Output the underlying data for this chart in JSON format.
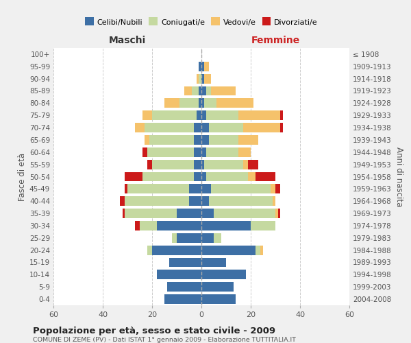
{
  "age_groups": [
    "0-4",
    "5-9",
    "10-14",
    "15-19",
    "20-24",
    "25-29",
    "30-34",
    "35-39",
    "40-44",
    "45-49",
    "50-54",
    "55-59",
    "60-64",
    "65-69",
    "70-74",
    "75-79",
    "80-84",
    "85-89",
    "90-94",
    "95-99",
    "100+"
  ],
  "birth_years": [
    "2004-2008",
    "1999-2003",
    "1994-1998",
    "1989-1993",
    "1984-1988",
    "1979-1983",
    "1974-1978",
    "1969-1973",
    "1964-1968",
    "1959-1963",
    "1954-1958",
    "1949-1953",
    "1944-1948",
    "1939-1943",
    "1934-1938",
    "1929-1933",
    "1924-1928",
    "1919-1923",
    "1914-1918",
    "1909-1913",
    "≤ 1908"
  ],
  "males": {
    "celibi": [
      15,
      14,
      18,
      13,
      20,
      10,
      18,
      10,
      5,
      5,
      3,
      3,
      3,
      3,
      3,
      2,
      1,
      1,
      0,
      1,
      0
    ],
    "coniugati": [
      0,
      0,
      0,
      0,
      2,
      2,
      7,
      21,
      26,
      25,
      21,
      17,
      19,
      18,
      20,
      18,
      8,
      3,
      1,
      0,
      0
    ],
    "vedovi": [
      0,
      0,
      0,
      0,
      0,
      0,
      0,
      0,
      0,
      0,
      0,
      0,
      0,
      2,
      4,
      4,
      6,
      3,
      1,
      0,
      0
    ],
    "divorziati": [
      0,
      0,
      0,
      0,
      0,
      0,
      2,
      1,
      2,
      1,
      7,
      2,
      2,
      0,
      0,
      0,
      0,
      0,
      0,
      0,
      0
    ]
  },
  "females": {
    "nubili": [
      14,
      13,
      18,
      10,
      22,
      5,
      20,
      5,
      3,
      4,
      2,
      1,
      2,
      3,
      3,
      2,
      1,
      2,
      1,
      1,
      0
    ],
    "coniugate": [
      0,
      0,
      0,
      0,
      2,
      3,
      10,
      25,
      26,
      24,
      17,
      16,
      13,
      12,
      14,
      13,
      5,
      2,
      0,
      0,
      0
    ],
    "vedove": [
      0,
      0,
      0,
      0,
      1,
      0,
      0,
      1,
      1,
      2,
      3,
      2,
      5,
      8,
      15,
      17,
      15,
      10,
      3,
      2,
      0
    ],
    "divorziate": [
      0,
      0,
      0,
      0,
      0,
      0,
      0,
      1,
      0,
      2,
      8,
      4,
      0,
      0,
      1,
      1,
      0,
      0,
      0,
      0,
      0
    ]
  },
  "colors": {
    "celibi": "#3d6fa5",
    "coniugati": "#c5d9a0",
    "vedovi": "#f5c26b",
    "divorziati": "#cc1a1a"
  },
  "title": "Popolazione per età, sesso e stato civile - 2009",
  "subtitle": "COMUNE DI ZEME (PV) - Dati ISTAT 1° gennaio 2009 - Elaborazione TUTTITALIA.IT",
  "xlabel_left": "Maschi",
  "xlabel_right": "Femmine",
  "ylabel_left": "Fasce di età",
  "ylabel_right": "Anni di nascita",
  "xlim": 60,
  "bg_color": "#f0f0f0",
  "plot_bg": "#ffffff",
  "grid_color": "#cccccc"
}
